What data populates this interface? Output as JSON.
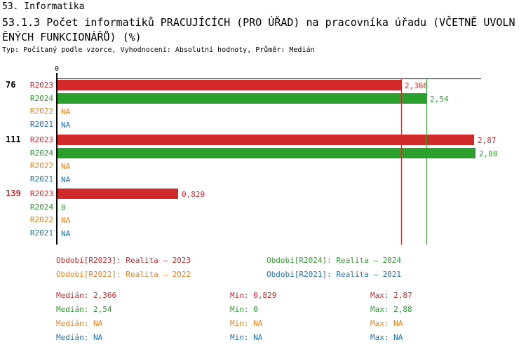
{
  "header": {
    "title": "53. Informatika",
    "subtitle": "53.1.3 Počet informatiků PRACUJÍCÍCH (PRO ÚŘAD) na pracovníka úřadu (VČETNĚ UVOLNĚNÝCH FUNKCIONÁŘŮ) (%)",
    "meta": "Typ: Počítaný podle vzorce, Vyhodnocení: Absolutní hodnoty, Průměr: Medián"
  },
  "colors": {
    "R2023": "#d2292b",
    "R2024": "#2ca02c",
    "R2022": "#ef8122",
    "R2021": "#2273b5",
    "axis": "#000000"
  },
  "chart_data": {
    "type": "bar",
    "orientation": "horizontal",
    "value_axis": {
      "min": 0,
      "zero_label": "0"
    },
    "categories": [
      "76",
      "111",
      "139"
    ],
    "category_colors": [
      "#000000",
      "#000000",
      "#d2292b"
    ],
    "series": [
      {
        "name": "R2023",
        "values": [
          2.366,
          2.87,
          0.829
        ],
        "displays": [
          "2,366",
          "2,87",
          "0,829"
        ]
      },
      {
        "name": "R2024",
        "values": [
          2.54,
          2.88,
          0
        ],
        "displays": [
          "2,54",
          "2,88",
          "0"
        ]
      },
      {
        "name": "R2022",
        "values": [
          null,
          null,
          null
        ],
        "displays": [
          "NA",
          "NA",
          "NA"
        ]
      },
      {
        "name": "R2021",
        "values": [
          null,
          null,
          null
        ],
        "displays": [
          "NA",
          "NA",
          "NA"
        ]
      }
    ],
    "median_lines": [
      {
        "series": "R2023",
        "value": 2.366
      },
      {
        "series": "R2024",
        "value": 2.54
      }
    ]
  },
  "legend": {
    "items": [
      {
        "series": "R2023",
        "label": "Období[R2023]: Realita – 2023"
      },
      {
        "series": "R2024",
        "label": "Období[R2024]: Realita – 2024"
      },
      {
        "series": "R2022",
        "label": "Období[R2022]: Realita – 2022"
      },
      {
        "series": "R2021",
        "label": "Období[R2021]: Realita – 2021"
      }
    ]
  },
  "stats": {
    "rows": [
      {
        "series": "R2023",
        "median": "Medián: 2,366",
        "min": "Min: 0,829",
        "max": "Max: 2,87"
      },
      {
        "series": "R2024",
        "median": "Medián: 2,54",
        "min": "Min: 0",
        "max": "Max: 2,88"
      },
      {
        "series": "R2022",
        "median": "Medián: NA",
        "min": "Min: NA",
        "max": "Max: NA"
      },
      {
        "series": "R2021",
        "median": "Medián: NA",
        "min": "Min: NA",
        "max": "Max: NA"
      }
    ]
  }
}
